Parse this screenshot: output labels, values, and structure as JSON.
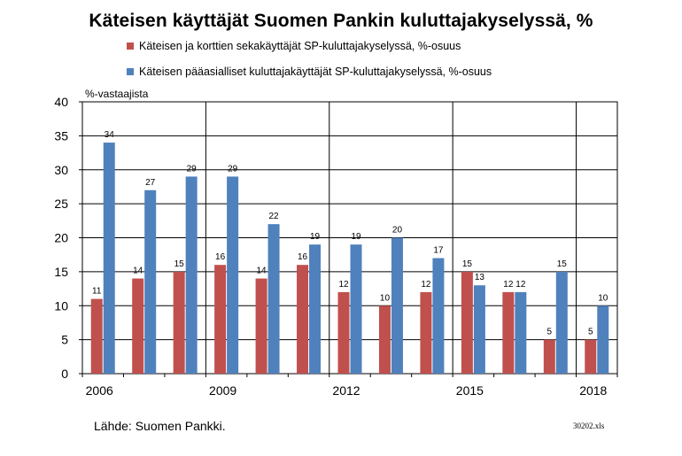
{
  "title": "Käteisen käyttäjät Suomen Pankin kuluttajakyselyssä, %",
  "legend": [
    {
      "label": "Käteisen ja korttien sekakäyttäjät SP-kuluttajakyselyssä, %-osuus",
      "color": "#c0504d"
    },
    {
      "label": "Käteisen pääasialliset kuluttajakäyttäjät SP-kuluttajakyselyssä, %-osuus",
      "color": "#4f81bd"
    }
  ],
  "source": "Lähde: Suomen Pankki.",
  "file_ref": "30202.xls",
  "chart_data": {
    "type": "bar",
    "title": "Käteisen käyttäjät Suomen Pankin kuluttajakyselyssä, %",
    "ylabel": "%-vastaajista",
    "ylim": [
      0,
      40
    ],
    "yticks": [
      0,
      5,
      10,
      15,
      20,
      25,
      30,
      35,
      40
    ],
    "x_tick_labels": [
      "2006",
      "2009",
      "2012",
      "2015",
      "2018"
    ],
    "grid": true,
    "legend_position": "top",
    "series": [
      {
        "name": "Käteisen ja korttien sekakäyttäjät SP-kuluttajakyselyssä, %-osuus",
        "color": "#c0504d",
        "values": [
          11,
          14,
          15,
          16,
          14,
          16,
          12,
          10,
          12,
          15,
          12,
          5,
          5
        ]
      },
      {
        "name": "Käteisen pääasialliset kuluttajakäyttäjät SP-kuluttajakyselyssä, %-osuus",
        "color": "#4f81bd",
        "values": [
          34,
          27,
          29,
          29,
          22,
          19,
          19,
          20,
          17,
          13,
          12,
          15,
          10
        ]
      }
    ]
  }
}
